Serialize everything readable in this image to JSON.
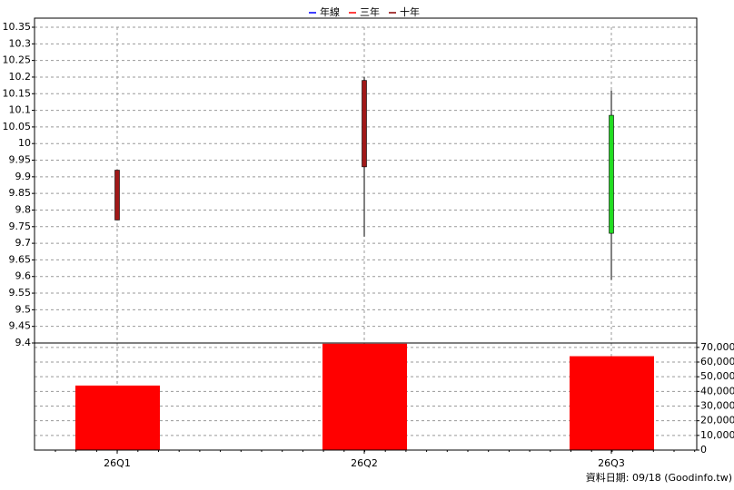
{
  "chart_data": {
    "type": "candlestick",
    "legend": [
      {
        "name": "年線",
        "color": "#0000ff"
      },
      {
        "name": "三年",
        "color": "#ff0000"
      },
      {
        "name": "十年",
        "color": "#8b0000"
      }
    ],
    "categories": [
      "26Q1",
      "26Q2",
      "26Q3"
    ],
    "open": [
      9.77,
      9.93,
      10.085
    ],
    "high": [
      9.92,
      10.2,
      10.16
    ],
    "low": [
      9.77,
      9.72,
      9.59
    ],
    "close": [
      9.92,
      10.19,
      9.73
    ],
    "up_color": "#a01818",
    "down_color": "#22dd22",
    "ylim": [
      9.4,
      10.35
    ],
    "yticks": [
      9.4,
      9.45,
      9.5,
      9.55,
      9.6,
      9.65,
      9.7,
      9.75,
      9.8,
      9.85,
      9.9,
      9.95,
      10,
      10.05,
      10.1,
      10.15,
      10.2,
      10.25,
      10.3,
      10.35
    ],
    "volume": {
      "values": [
        44000,
        72500,
        64000
      ],
      "color": "#ff0000",
      "axis": "y2"
    },
    "y2lim": [
      0,
      73000
    ],
    "y2ticks": [
      0,
      {
        "value": 10000,
        "label": "10,000"
      },
      {
        "value": 20000,
        "label": "20,000"
      },
      {
        "value": 30000,
        "label": "30,000"
      },
      {
        "value": 40000,
        "label": "40,000"
      },
      {
        "value": 50000,
        "label": "50,000"
      },
      {
        "value": 60000,
        "label": "60,000"
      },
      {
        "value": 70000,
        "label": "70,000"
      }
    ],
    "grid": true,
    "source_note": "資料日期: 09/18  (Goodinfo.tw)"
  }
}
